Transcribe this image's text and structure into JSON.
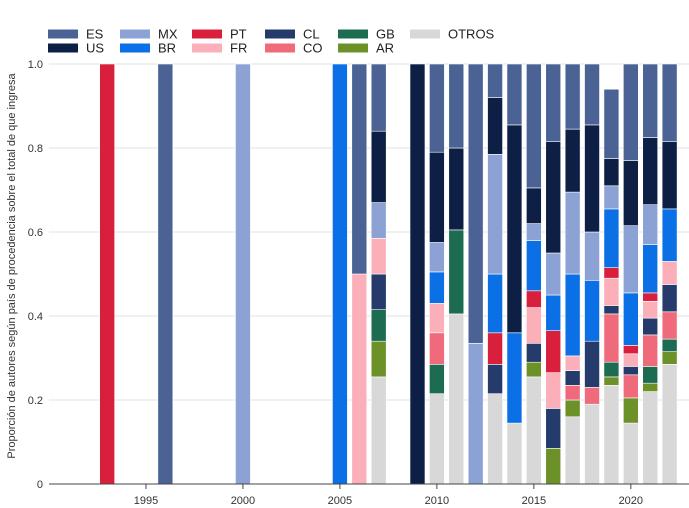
{
  "chart_data": {
    "type": "bar",
    "stacked": true,
    "ylabel": "Proporción de autores según país de procedencia sobre el total de que ingresa",
    "xlabel": "",
    "xlim": [
      1990,
      2023
    ],
    "ylim": [
      0,
      1
    ],
    "x_ticks": [
      1995,
      2000,
      2005,
      2010,
      2015,
      2020
    ],
    "y_ticks": [
      0,
      0.2,
      0.4,
      0.6,
      0.8,
      1.0
    ],
    "y_tick_labels": [
      "0",
      "0.2",
      "0.4",
      "0.6",
      "0.8",
      "1.0"
    ],
    "grid": "horizontal",
    "legend_position": "top-left",
    "legend_order": [
      "ES",
      "US",
      "MX",
      "BR",
      "PT",
      "FR",
      "CL",
      "CO",
      "GB",
      "AR",
      "OTROS"
    ],
    "stack_order": [
      "OTROS",
      "AR",
      "GB",
      "CO",
      "CL",
      "FR",
      "PT",
      "BR",
      "MX",
      "US",
      "ES"
    ],
    "colors": {
      "ES": "#4a6394",
      "US": "#0d1f45",
      "MX": "#8ca2d4",
      "BR": "#0b6fe6",
      "PT": "#d81f3c",
      "FR": "#fbb0b9",
      "CL": "#253b6b",
      "CO": "#ef6b7c",
      "GB": "#1d6b50",
      "AR": "#6c9128",
      "OTROS": "#d8d8d8"
    },
    "years": [
      1993,
      1996,
      2000,
      2005,
      2006,
      2007,
      2009,
      2010,
      2011,
      2012,
      2013,
      2014,
      2015,
      2016,
      2017,
      2018,
      2019,
      2020,
      2021,
      2022
    ],
    "series": [
      {
        "name": "OTROS",
        "values": [
          0,
          0,
          0,
          0,
          0,
          0.255,
          0,
          0.215,
          0.405,
          0,
          0.215,
          0.145,
          0.255,
          0,
          0.16,
          0.19,
          0.235,
          0.145,
          0.22,
          0.285
        ]
      },
      {
        "name": "AR",
        "values": [
          0,
          0,
          0,
          0,
          0,
          0.085,
          0,
          0,
          0,
          0,
          0,
          0,
          0.035,
          0.085,
          0.04,
          0,
          0.02,
          0.06,
          0.02,
          0.03
        ]
      },
      {
        "name": "GB",
        "values": [
          0,
          0,
          0,
          0,
          0,
          0.075,
          0,
          0.07,
          0.2,
          0,
          0,
          0,
          0,
          0,
          0,
          0,
          0.035,
          0,
          0.04,
          0.03
        ]
      },
      {
        "name": "CO",
        "values": [
          0,
          0,
          0,
          0,
          0,
          0,
          0,
          0.075,
          0,
          0,
          0,
          0,
          0,
          0,
          0.035,
          0.04,
          0.115,
          0.055,
          0.075,
          0.065
        ]
      },
      {
        "name": "CL",
        "values": [
          0,
          0,
          0,
          0,
          0,
          0.085,
          0,
          0,
          0,
          0,
          0.07,
          0,
          0.045,
          0.095,
          0.035,
          0.11,
          0.02,
          0.02,
          0.04,
          0.065
        ]
      },
      {
        "name": "FR",
        "values": [
          0,
          0,
          0,
          0,
          0.5,
          0.085,
          0,
          0.07,
          0,
          0,
          0,
          0,
          0.085,
          0.085,
          0.035,
          0,
          0.065,
          0.03,
          0.04,
          0.055
        ]
      },
      {
        "name": "PT",
        "values": [
          1.0,
          0,
          0,
          0,
          0,
          0,
          0,
          0,
          0,
          0,
          0.075,
          0,
          0.04,
          0.1,
          0,
          0,
          0.025,
          0.02,
          0.02,
          0
        ]
      },
      {
        "name": "BR",
        "values": [
          0,
          0,
          0,
          1.0,
          0,
          0,
          0,
          0.075,
          0,
          0,
          0.14,
          0.215,
          0.12,
          0.085,
          0.195,
          0.145,
          0.14,
          0.125,
          0.115,
          0.125
        ]
      },
      {
        "name": "MX",
        "values": [
          0,
          0,
          1.0,
          0,
          0,
          0.085,
          0,
          0.07,
          0,
          0.335,
          0.285,
          0,
          0.04,
          0.1,
          0.195,
          0.115,
          0.055,
          0.16,
          0.095,
          0
        ]
      },
      {
        "name": "US",
        "values": [
          0,
          0,
          0,
          0,
          0,
          0.17,
          1.0,
          0.215,
          0.195,
          0,
          0.135,
          0.495,
          0.085,
          0.265,
          0.15,
          0.255,
          0.065,
          0.155,
          0.16,
          0.16
        ]
      },
      {
        "name": "ES",
        "values": [
          0,
          1.0,
          0,
          0,
          0.5,
          0.16,
          0,
          0.21,
          0.2,
          0.665,
          0.08,
          0.145,
          0.295,
          0.185,
          0.155,
          0.145,
          0.165,
          0.23,
          0.175,
          0.185
        ]
      }
    ]
  }
}
